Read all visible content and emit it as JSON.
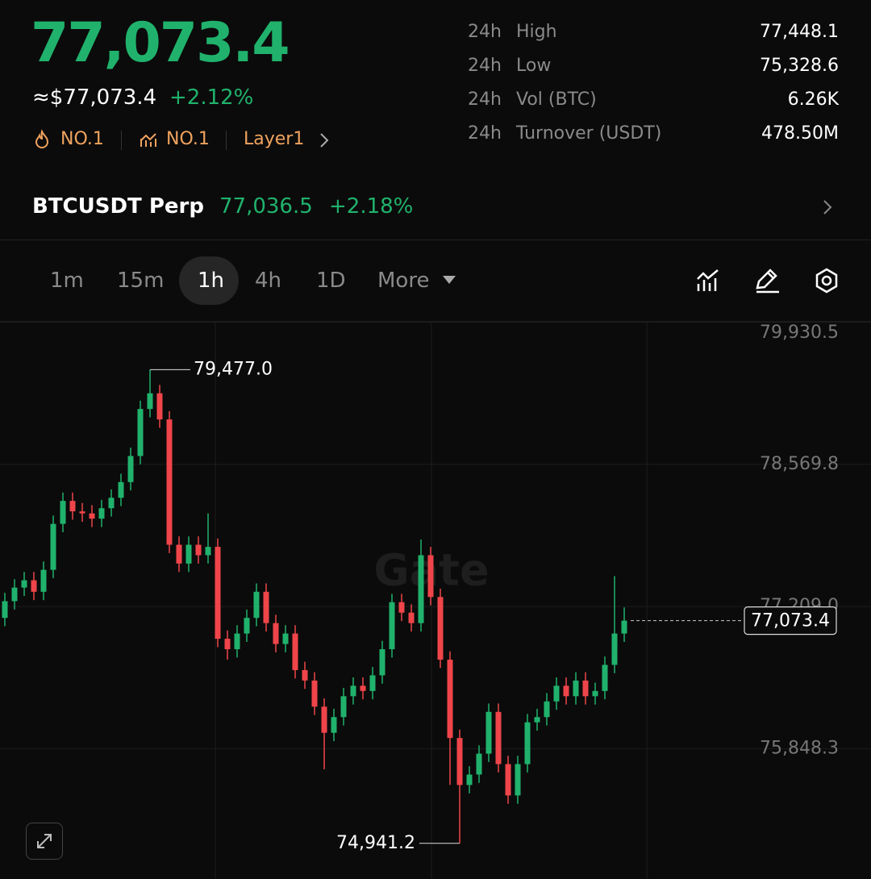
{
  "header": {
    "price": "77,073.4",
    "fiat_price": "≈$77,073.4",
    "change": "+2.12%",
    "tags": [
      "NO.1",
      "NO.1",
      "Layer1"
    ]
  },
  "stats": [
    {
      "period": "24h",
      "label": "High",
      "value": "77,448.1"
    },
    {
      "period": "24h",
      "label": "Low",
      "value": "75,328.6"
    },
    {
      "period": "24h",
      "label": "Vol (BTC)",
      "value": "6.26K"
    },
    {
      "period": "24h",
      "label": "Turnover (USDT)",
      "value": "478.50M"
    }
  ],
  "perp": {
    "name": "BTCUSDT Perp",
    "price": "77,036.5",
    "change": "+2.18%"
  },
  "timeframes": [
    "1m",
    "15m",
    "1h",
    "4h",
    "1D",
    "More"
  ],
  "chart_data": {
    "type": "candlestick",
    "watermark": "Gate",
    "up_color": "#20b26c",
    "down_color": "#ef454a",
    "ylim": [
      74600,
      79935
    ],
    "yticks": [
      {
        "value": 79930.5,
        "label": "79,930.5"
      },
      {
        "value": 78569.8,
        "label": "78,569.8"
      },
      {
        "value": 77209.0,
        "label": "77,209.0"
      },
      {
        "value": 75848.3,
        "label": "75,848.3"
      }
    ],
    "grid": true,
    "candles": [
      [
        77100,
        77340,
        77020,
        77260
      ],
      [
        77260,
        77470,
        77180,
        77390
      ],
      [
        77390,
        77540,
        77310,
        77460
      ],
      [
        77460,
        77540,
        77270,
        77350
      ],
      [
        77350,
        77640,
        77270,
        77560
      ],
      [
        77560,
        78080,
        77480,
        78000
      ],
      [
        78000,
        78300,
        77920,
        78220
      ],
      [
        78220,
        78300,
        78040,
        78120
      ],
      [
        78120,
        78200,
        78020,
        78100
      ],
      [
        78100,
        78180,
        77970,
        78050
      ],
      [
        78050,
        78230,
        77970,
        78150
      ],
      [
        78150,
        78330,
        78070,
        78250
      ],
      [
        78250,
        78480,
        78170,
        78400
      ],
      [
        78400,
        78730,
        78320,
        78650
      ],
      [
        78650,
        79180,
        78570,
        79100
      ],
      [
        79100,
        79477.0,
        79020,
        79250
      ],
      [
        79250,
        79330,
        78920,
        79000
      ],
      [
        79000,
        79080,
        77720,
        77800
      ],
      [
        77800,
        77880,
        77540,
        77620
      ],
      [
        77620,
        77880,
        77540,
        77800
      ],
      [
        77800,
        77880,
        77620,
        77700
      ],
      [
        77700,
        78100,
        77620,
        77780
      ],
      [
        77780,
        77860,
        76820,
        76900
      ],
      [
        76900,
        76980,
        76700,
        76800
      ],
      [
        76800,
        77030,
        76720,
        76950
      ],
      [
        76950,
        77180,
        76870,
        77100
      ],
      [
        77100,
        77430,
        77020,
        77350
      ],
      [
        77350,
        77430,
        76970,
        77050
      ],
      [
        77050,
        77130,
        76770,
        76850
      ],
      [
        76850,
        77030,
        76770,
        76950
      ],
      [
        76950,
        77030,
        76520,
        76600
      ],
      [
        76600,
        76680,
        76420,
        76500
      ],
      [
        76500,
        76580,
        76170,
        76250
      ],
      [
        76250,
        76330,
        75650,
        76000
      ],
      [
        76000,
        76230,
        75920,
        76150
      ],
      [
        76150,
        76430,
        76070,
        76350
      ],
      [
        76350,
        76530,
        76270,
        76450
      ],
      [
        76450,
        76530,
        76320,
        76400
      ],
      [
        76400,
        76630,
        76320,
        76550
      ],
      [
        76550,
        76880,
        76470,
        76800
      ],
      [
        76800,
        77330,
        76720,
        77250
      ],
      [
        77250,
        77330,
        77070,
        77150
      ],
      [
        77150,
        77230,
        76970,
        77050
      ],
      [
        77050,
        77850,
        76970,
        77700
      ],
      [
        77700,
        77780,
        77220,
        77300
      ],
      [
        77300,
        77380,
        76620,
        76700
      ],
      [
        76700,
        76780,
        75500,
        75950
      ],
      [
        75950,
        76030,
        74941.2,
        75500
      ],
      [
        75500,
        75680,
        75420,
        75600
      ],
      [
        75600,
        75880,
        75520,
        75800
      ],
      [
        75800,
        76280,
        75720,
        76200
      ],
      [
        76200,
        76280,
        75620,
        75700
      ],
      [
        75700,
        75780,
        75320,
        75400
      ],
      [
        75400,
        75780,
        75320,
        75700
      ],
      [
        75700,
        76180,
        75620,
        76100
      ],
      [
        76100,
        76230,
        76020,
        76150
      ],
      [
        76150,
        76380,
        76070,
        76300
      ],
      [
        76300,
        76530,
        76220,
        76450
      ],
      [
        76450,
        76530,
        76270,
        76350
      ],
      [
        76350,
        76580,
        76270,
        76500
      ],
      [
        76500,
        76580,
        76270,
        76350
      ],
      [
        76350,
        76480,
        76270,
        76400
      ],
      [
        76400,
        76730,
        76320,
        76650
      ],
      [
        76650,
        77500,
        76570,
        76950
      ],
      [
        76950,
        77200,
        76870,
        77073.4
      ]
    ],
    "annotations": [
      {
        "value": 79477.0,
        "label": "79,477.0"
      },
      {
        "value": 74941.2,
        "label": "74,941.2"
      }
    ],
    "last_price": {
      "value": 77073.4,
      "label": "77,073.4"
    }
  }
}
